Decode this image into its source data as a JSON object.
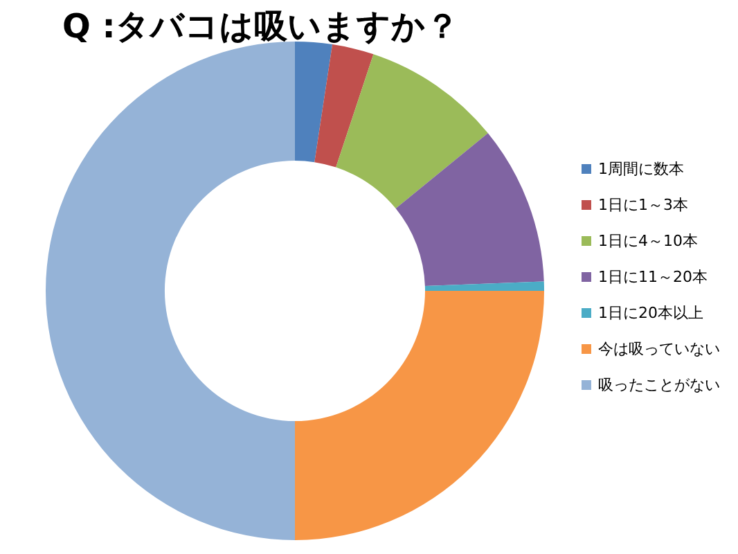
{
  "chart_data": {
    "type": "donut",
    "title": "Q :タバコは吸いますか？",
    "categories": [
      "1周間に数本",
      "1日に1～3本",
      "1日に4～10本",
      "1日に11～20本",
      "1日に20本以上",
      "今は吸っていない",
      "吸ったことがない"
    ],
    "values": [
      2.4,
      2.7,
      9,
      10.3,
      0.6,
      25,
      50
    ],
    "colors": [
      "#4f81bd",
      "#c0504d",
      "#9bbb59",
      "#8064a2",
      "#4bacc6",
      "#f79646",
      "#95b3d7"
    ],
    "legend": "right"
  }
}
